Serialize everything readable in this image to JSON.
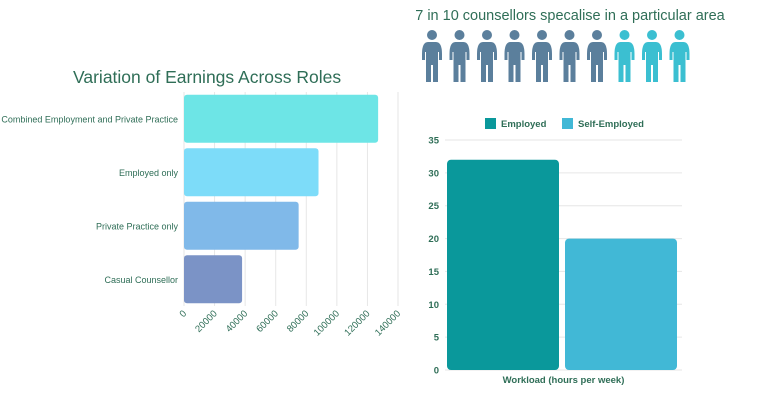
{
  "infographic": {
    "title": "7 in 10 counsellors specalise in a particular area",
    "total": 10,
    "highlighted": 7,
    "colors": {
      "highlighted": "#5b7f9c",
      "other": "#3bbfd1"
    }
  },
  "chart_data": [
    {
      "type": "bar",
      "orientation": "horizontal",
      "title": "Variation of Earnings Across Roles",
      "categories": [
        "Combined Employment and Private Practice",
        "Employed only",
        "Private Practice only",
        "Casual Counsellor"
      ],
      "values": [
        127000,
        88000,
        75000,
        38000
      ],
      "colors": [
        "#6de5e6",
        "#7ddcf9",
        "#80b9e9",
        "#7b93c6"
      ],
      "xlim": [
        0,
        140000
      ],
      "xticks": [
        "0",
        "20000",
        "40000",
        "60000",
        "80000",
        "100000",
        "120000",
        "140000"
      ],
      "xlabel": "",
      "ylabel": "",
      "grid": true
    },
    {
      "type": "bar",
      "categories": [
        "Workload (hours per week)"
      ],
      "series": [
        {
          "name": "Employed",
          "values": [
            32
          ],
          "color": "#0a989b"
        },
        {
          "name": "Self-Employed",
          "values": [
            20
          ],
          "color": "#41b8d6"
        }
      ],
      "ylim": [
        0,
        35
      ],
      "yticks": [
        "0",
        "5",
        "10",
        "15",
        "20",
        "25",
        "30",
        "35"
      ],
      "legend": "top",
      "grid": true
    }
  ]
}
